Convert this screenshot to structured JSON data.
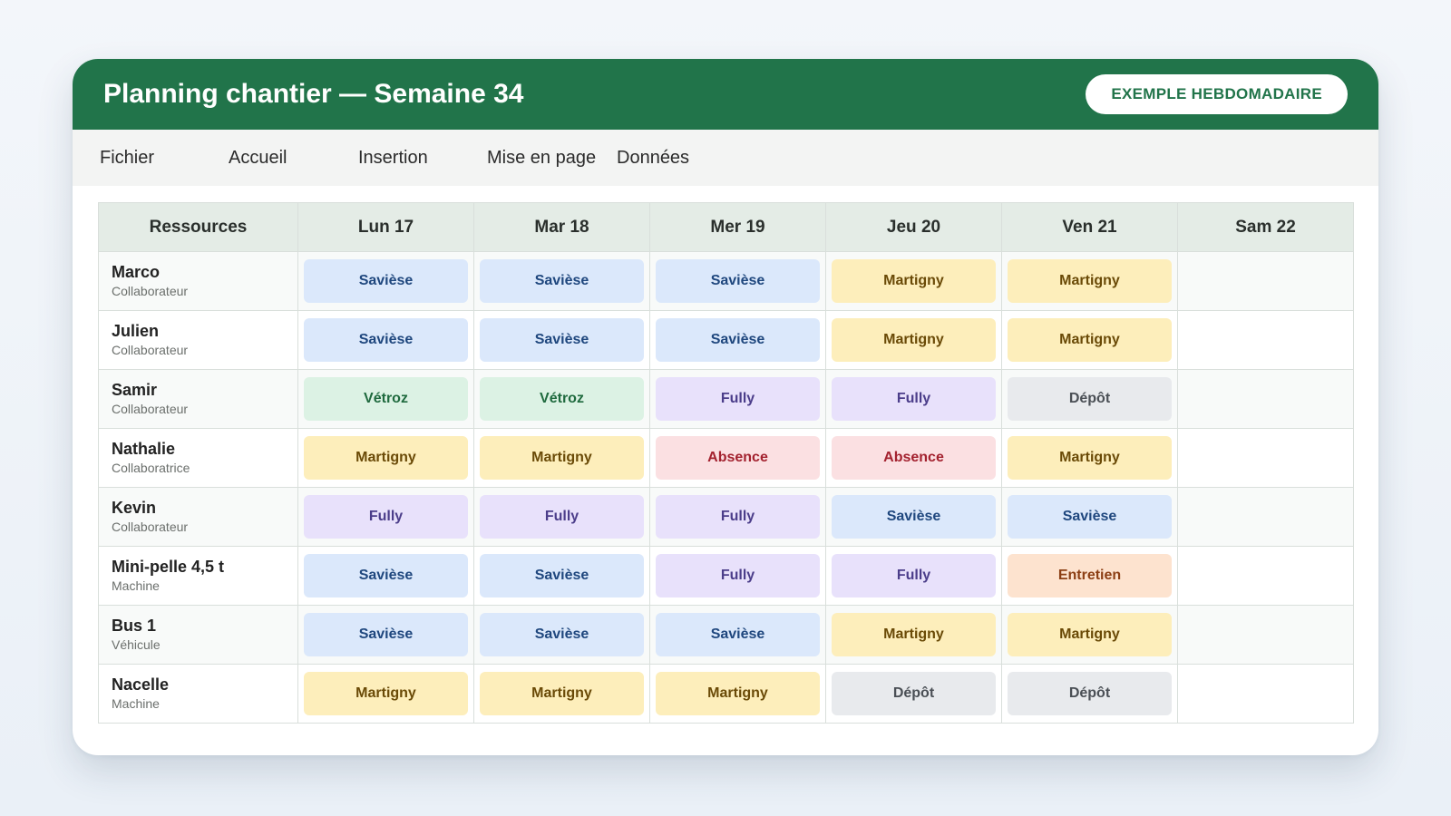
{
  "window": {
    "title": "Planning chantier — Semaine 34",
    "badge": "EXEMPLE HEBDOMADAIRE"
  },
  "ribbon": {
    "tabs": [
      "Fichier",
      "Accueil",
      "Insertion",
      "Mise en page",
      "Données"
    ]
  },
  "table": {
    "headers": [
      "Ressources",
      "Lun 17",
      "Mar 18",
      "Mer 19",
      "Jeu 20",
      "Ven 21",
      "Sam 22"
    ],
    "rows": [
      {
        "name": "Marco",
        "type": "Collaborateur",
        "days": [
          "Savièse",
          "Savièse",
          "Savièse",
          "Martigny",
          "Martigny",
          ""
        ]
      },
      {
        "name": "Julien",
        "type": "Collaborateur",
        "days": [
          "Savièse",
          "Savièse",
          "Savièse",
          "Martigny",
          "Martigny",
          ""
        ]
      },
      {
        "name": "Samir",
        "type": "Collaborateur",
        "days": [
          "Vétroz",
          "Vétroz",
          "Fully",
          "Fully",
          "Dépôt",
          ""
        ]
      },
      {
        "name": "Nathalie",
        "type": "Collaboratrice",
        "days": [
          "Martigny",
          "Martigny",
          "Absence",
          "Absence",
          "Martigny",
          ""
        ]
      },
      {
        "name": "Kevin",
        "type": "Collaborateur",
        "days": [
          "Fully",
          "Fully",
          "Fully",
          "Savièse",
          "Savièse",
          ""
        ]
      },
      {
        "name": "Mini-pelle 4,5 t",
        "type": "Machine",
        "days": [
          "Savièse",
          "Savièse",
          "Fully",
          "Fully",
          "Entretien",
          ""
        ]
      },
      {
        "name": "Bus 1",
        "type": "Véhicule",
        "days": [
          "Savièse",
          "Savièse",
          "Savièse",
          "Martigny",
          "Martigny",
          ""
        ]
      },
      {
        "name": "Nacelle",
        "type": "Machine",
        "days": [
          "Martigny",
          "Martigny",
          "Martigny",
          "Dépôt",
          "Dépôt",
          ""
        ]
      }
    ]
  },
  "colors": {
    "header_green": "#21744a",
    "Savièse": "#dbe8fb",
    "Martigny": "#fdeebb",
    "Vétroz": "#dcf2e4",
    "Fully": "#e8e1fb",
    "Dépôt": "#e8eaed",
    "Absence": "#fbe0e2",
    "Entretien": "#fde3cf"
  }
}
